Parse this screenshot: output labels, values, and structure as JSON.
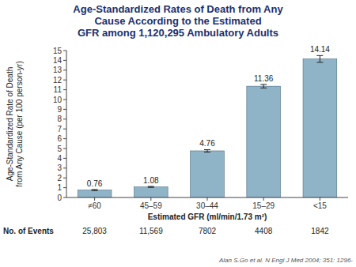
{
  "chart_data": {
    "type": "bar",
    "title": "Age-Standardized Rates of Death from Any\nCause According to the Estimated\nGFR among 1,120,295 Ambulatory Adults",
    "categories": [
      "≠60",
      "45–59",
      "30–44",
      "15–29",
      "<15"
    ],
    "values": [
      0.76,
      1.08,
      4.76,
      11.36,
      14.14
    ],
    "errors": [
      0.05,
      0.05,
      0.12,
      0.18,
      0.35
    ],
    "color": "#8fb4c8",
    "data_labels": true,
    "xlabel": "Estimated GFR (ml/min/1.73 m²)",
    "ylabel": "Age-Standardized Rate of Death\nfrom Any Cause (per 100 person-yr)",
    "ylim": [
      0,
      15
    ],
    "yticks": [
      0,
      1,
      2,
      3,
      4,
      5,
      6,
      7,
      8,
      9,
      10,
      11,
      12,
      13,
      14,
      15
    ],
    "grid": false,
    "no_of_events_label": "No. of Events",
    "no_of_events": [
      "25,803",
      "11,569",
      "7802",
      "4408",
      "1842"
    ],
    "citation": "Alan S.Go et al. N Engl J Med 2004; 351: 1296-"
  }
}
